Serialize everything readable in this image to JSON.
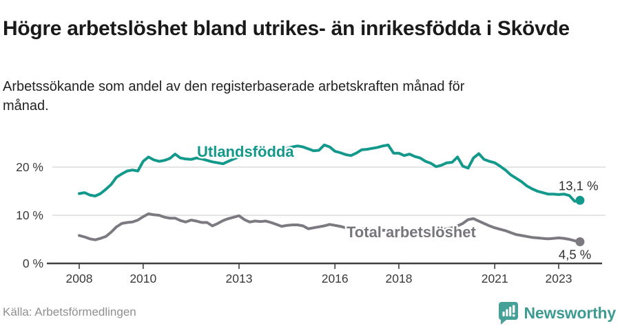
{
  "header": {
    "title": "Högre arbetslöshet bland utrikes- än inrikesfödda i Skövde",
    "subtitle": "Arbetssökande som andel av den registerbaserade arbetskraften månad för månad."
  },
  "footer": {
    "source": "Källa: Arbetsförmedlingen",
    "brand": "Newsworthy",
    "brand_icon": "newsworthy-bubble-barchart-icon"
  },
  "colors": {
    "teal_series": "#13998b",
    "gray_series": "#7c7a80",
    "gray_label": "#77757b",
    "axis": "#3f3f3f",
    "tick_text": "#3a3a3a",
    "gridline": "#dcdcdc",
    "end_label": "#2e2e2e",
    "brand_teal": "#3d9b92"
  },
  "chart_data": {
    "type": "line",
    "title": "Högre arbetslöshet bland utrikes- än inrikesfödda i Skövde",
    "subtitle": "Arbetssökande som andel av den registerbaserade arbetskraften månad för månad.",
    "unit": "%",
    "x_start": 2008.0,
    "x_step_months": 2,
    "x_end": 2023.667,
    "xlim": [
      2007.0,
      2024.4
    ],
    "ylim": [
      0,
      26
    ],
    "grid": true,
    "x_ticks": [
      2008,
      2010,
      2013,
      2016,
      2018,
      2021,
      2023
    ],
    "y_ticks": [
      {
        "value": 0,
        "label": "0 %"
      },
      {
        "value": 10,
        "label": "10 %"
      },
      {
        "value": 20,
        "label": "20 %"
      }
    ],
    "series": [
      {
        "name": "Utlandsfödda",
        "end_label": "13,1 %",
        "end_value": 13.1,
        "values": [
          14.5,
          14.7,
          14.2,
          14.0,
          14.5,
          15.4,
          16.4,
          17.9,
          18.6,
          19.2,
          19.4,
          19.2,
          21.2,
          22.1,
          21.5,
          21.2,
          21.4,
          21.8,
          22.7,
          21.9,
          21.7,
          21.6,
          21.9,
          21.7,
          21.4,
          21.1,
          20.9,
          20.7,
          21.2,
          21.7,
          22.1,
          22.4,
          22.9,
          23.0,
          22.9,
          23.3,
          23.7,
          23.6,
          23.7,
          23.9,
          24.2,
          24.4,
          24.2,
          23.8,
          23.4,
          23.5,
          24.6,
          24.2,
          23.3,
          23.0,
          22.6,
          22.4,
          22.9,
          23.6,
          23.7,
          23.9,
          24.1,
          24.4,
          24.6,
          22.9,
          22.9,
          22.4,
          22.7,
          22.2,
          21.9,
          21.2,
          20.8,
          20.1,
          20.4,
          20.9,
          21.0,
          22.1,
          20.2,
          19.8,
          21.9,
          22.8,
          21.6,
          21.2,
          20.9,
          20.2,
          19.4,
          18.4,
          17.7,
          17.0,
          16.1,
          15.5,
          15.0,
          14.7,
          14.4,
          14.4,
          14.3,
          14.4,
          14.1,
          12.9,
          13.1
        ]
      },
      {
        "name": "Total arbetslöshet",
        "end_label": "4,5 %",
        "end_value": 4.5,
        "values": [
          5.8,
          5.5,
          5.1,
          4.9,
          5.2,
          5.6,
          6.5,
          7.6,
          8.3,
          8.5,
          8.6,
          9.0,
          9.7,
          10.3,
          10.1,
          10.0,
          9.6,
          9.4,
          9.4,
          8.9,
          8.6,
          9.0,
          8.8,
          8.5,
          8.5,
          7.8,
          8.3,
          8.9,
          9.3,
          9.6,
          9.9,
          9.1,
          8.6,
          8.8,
          8.7,
          8.8,
          8.5,
          8.1,
          7.7,
          7.9,
          8.0,
          8.0,
          7.8,
          7.2,
          7.4,
          7.6,
          7.8,
          8.1,
          7.9,
          7.7,
          7.4,
          7.3,
          7.2,
          7.1,
          7.2,
          7.1,
          7.0,
          6.9,
          6.8,
          6.9,
          6.9,
          6.8,
          6.6,
          6.6,
          6.7,
          6.8,
          6.8,
          6.9,
          7.0,
          7.2,
          7.4,
          7.8,
          8.3,
          9.1,
          9.3,
          8.8,
          8.3,
          7.8,
          7.4,
          7.1,
          6.8,
          6.4,
          6.0,
          5.8,
          5.6,
          5.4,
          5.3,
          5.2,
          5.1,
          5.2,
          5.3,
          5.2,
          5.0,
          4.7,
          4.5
        ]
      }
    ]
  }
}
